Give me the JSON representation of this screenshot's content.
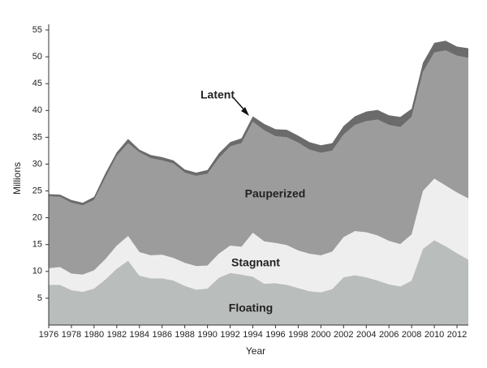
{
  "chart_data": {
    "type": "stacked-area",
    "x_label": "Year",
    "y_label": "Millions",
    "x": [
      1976,
      1977,
      1978,
      1979,
      1980,
      1981,
      1982,
      1983,
      1984,
      1985,
      1986,
      1987,
      1988,
      1989,
      1990,
      1991,
      1992,
      1993,
      1994,
      1995,
      1996,
      1997,
      1998,
      1999,
      2000,
      2001,
      2002,
      2003,
      2004,
      2005,
      2006,
      2007,
      2008,
      2009,
      2010,
      2011,
      2012,
      2013
    ],
    "series": [
      {
        "name": "Floating",
        "color": "#b9bdbb",
        "values": [
          7.5,
          7.5,
          6.5,
          6.2,
          6.8,
          8.5,
          10.5,
          12,
          9.2,
          8.7,
          8.7,
          8.3,
          7.3,
          6.6,
          6.8,
          8.8,
          9.7,
          9.4,
          9.0,
          7.7,
          7.8,
          7.5,
          6.9,
          6.3,
          6.1,
          6.7,
          8.9,
          9.3,
          8.9,
          8.3,
          7.6,
          7.2,
          8.3,
          14.2,
          15.8,
          14.7,
          13.4,
          12.2
        ]
      },
      {
        "name": "Stagnant",
        "color": "#eeeeee",
        "values": [
          3.1,
          3.3,
          3.1,
          3.2,
          3.4,
          3.8,
          4.3,
          4.6,
          4.4,
          4.3,
          4.4,
          4.2,
          4.3,
          4.4,
          4.3,
          4.5,
          5.1,
          5.2,
          8.2,
          7.9,
          7.5,
          7.4,
          7.0,
          7.0,
          6.9,
          7.0,
          7.5,
          8.2,
          8.4,
          8.4,
          8.1,
          7.9,
          8.6,
          10.8,
          11.5,
          11.3,
          11.3,
          11.4
        ]
      },
      {
        "name": "Pauperized",
        "color": "#9c9c9c",
        "values": [
          13.4,
          13.1,
          13.2,
          12.9,
          13.1,
          15.2,
          16.7,
          17.3,
          18.6,
          18.1,
          17.6,
          17.6,
          16.8,
          16.8,
          17.1,
          17.8,
          18.5,
          19.3,
          20.7,
          20.7,
          19.9,
          20.1,
          20.1,
          19.4,
          19.1,
          18.8,
          19.1,
          19.8,
          20.7,
          21.6,
          21.6,
          21.8,
          21.9,
          22.2,
          23.5,
          25.2,
          25.5,
          26.2
        ]
      },
      {
        "name": "Latent",
        "color": "#6b6b6b",
        "values": [
          0.4,
          0.4,
          0.5,
          0.5,
          0.6,
          0.8,
          0.7,
          0.8,
          0.5,
          0.6,
          0.6,
          0.6,
          0.6,
          0.6,
          0.7,
          0.9,
          0.8,
          0.9,
          1.0,
          1.2,
          1.3,
          1.4,
          1.3,
          1.4,
          1.4,
          1.4,
          1.6,
          1.6,
          1.8,
          1.8,
          1.8,
          1.9,
          1.5,
          1.7,
          1.8,
          1.8,
          1.7,
          1.8
        ]
      }
    ],
    "xlim": [
      1976,
      2013
    ],
    "xticks": [
      1976,
      1978,
      1980,
      1982,
      1984,
      1986,
      1988,
      1990,
      1992,
      1994,
      1996,
      1998,
      2000,
      2002,
      2004,
      2006,
      2008,
      2010,
      2012
    ],
    "ylim": [
      0,
      55
    ],
    "yticks": [
      5,
      10,
      15,
      20,
      25,
      30,
      35,
      40,
      45,
      50,
      55
    ]
  }
}
